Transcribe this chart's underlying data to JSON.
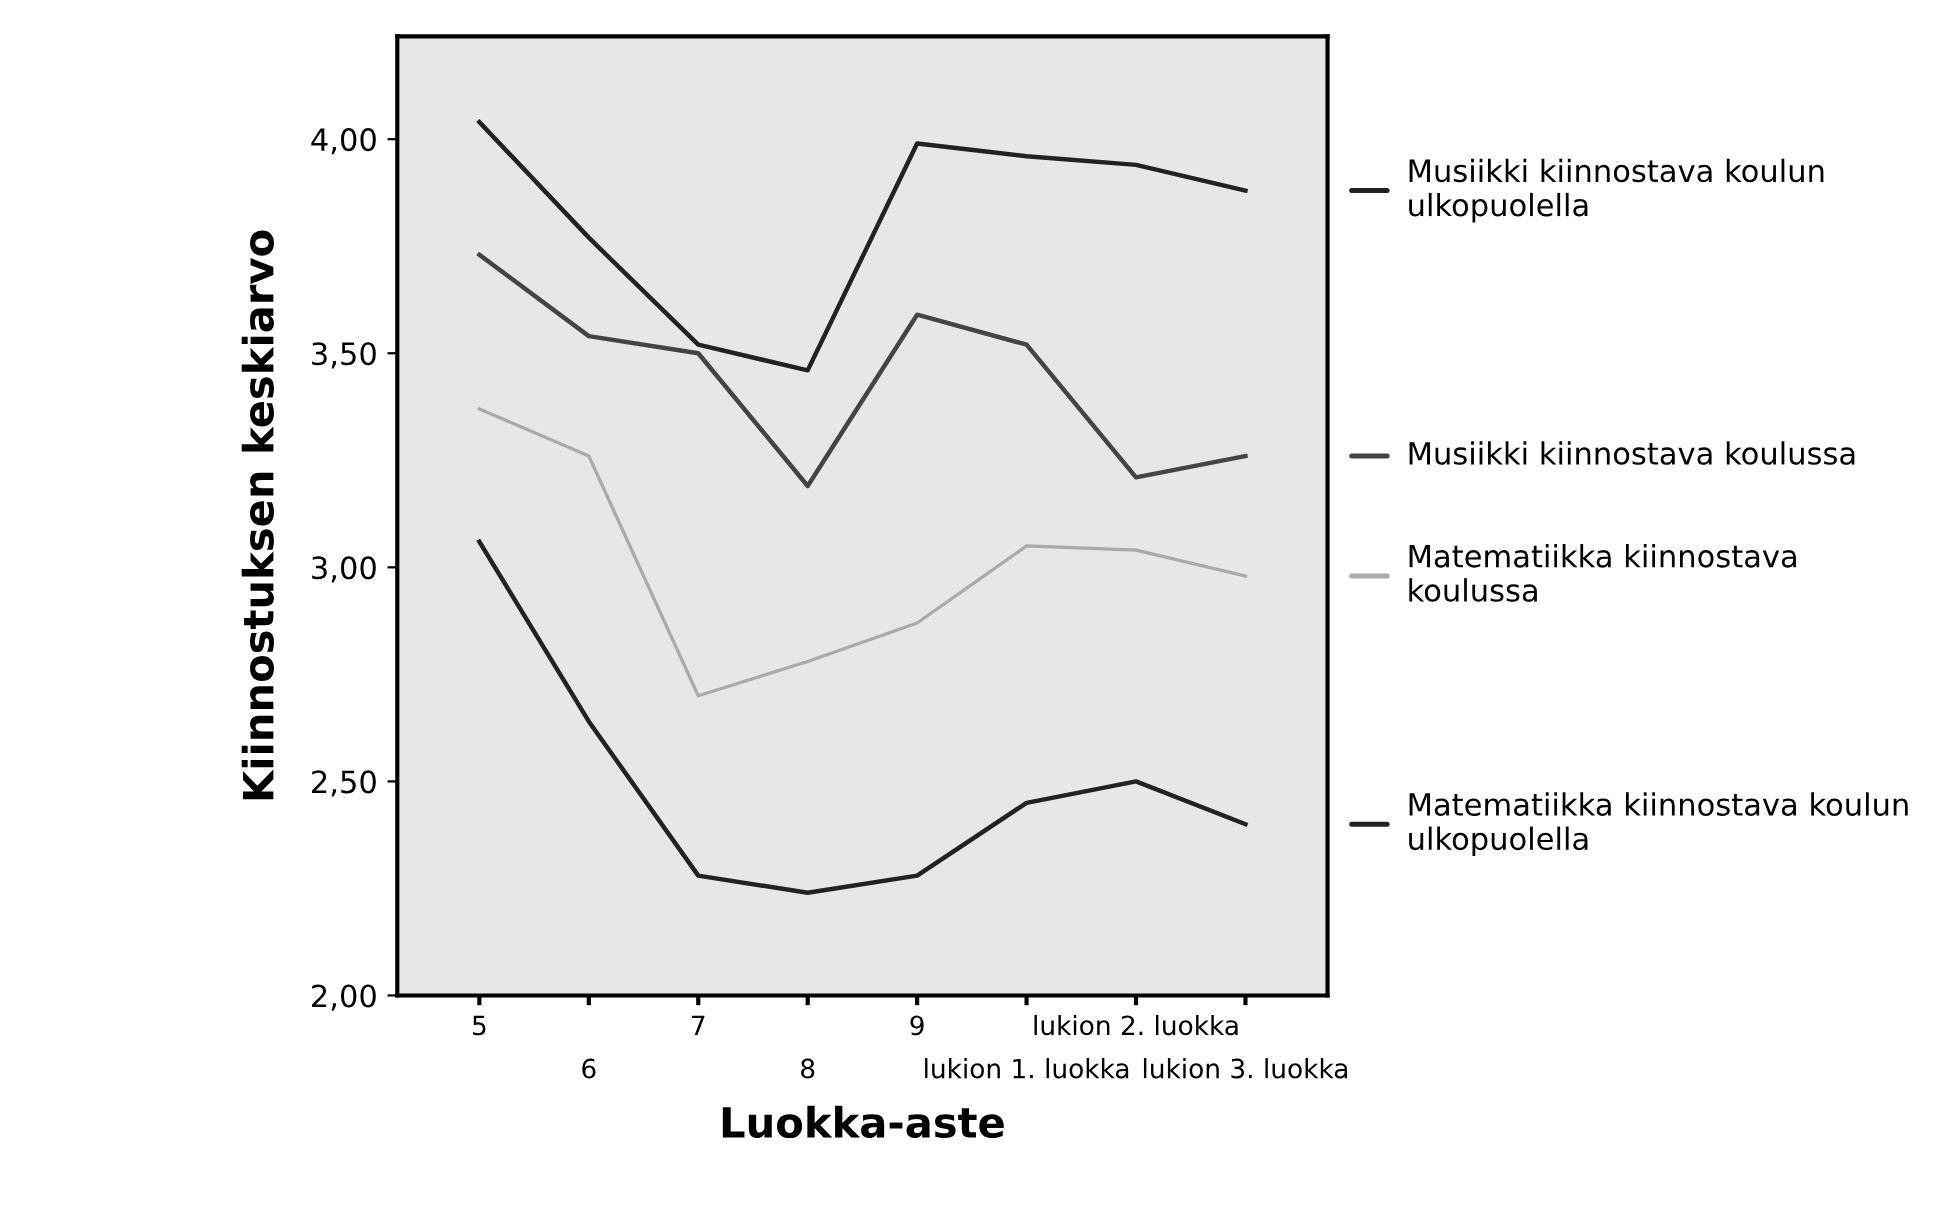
{
  "chart_data": {
    "type": "line",
    "xlabel": "Luokka-aste",
    "ylabel": "Kiinnostuksen keskiarvo",
    "categories": [
      "5",
      "6",
      "7",
      "8",
      "9",
      "lukion 1. luokka",
      "lukion 2. luokka",
      "lukion 3. luokka"
    ],
    "ylim": [
      2.0,
      4.24
    ],
    "yticks": [
      {
        "value": 2.0,
        "label": "2,00"
      },
      {
        "value": 2.5,
        "label": "2,50"
      },
      {
        "value": 3.0,
        "label": "3,00"
      },
      {
        "value": 3.5,
        "label": "3,50"
      },
      {
        "value": 4.0,
        "label": "4,00"
      }
    ],
    "legend": "right",
    "grid": false,
    "marker": "none",
    "line_style": "solid",
    "series": [
      {
        "name": "Musiikki kiinnostava koulun ulkopuolella",
        "color": "#222222",
        "values": [
          4.04,
          3.77,
          3.52,
          3.46,
          3.99,
          3.96,
          3.94,
          3.88
        ]
      },
      {
        "name": "Musiikki kiinnostava koulussa",
        "color": "#444444",
        "values": [
          3.73,
          3.54,
          3.5,
          3.19,
          3.59,
          3.52,
          3.21,
          3.26
        ]
      },
      {
        "name": "Matematiikka kiinnostava koulussa",
        "color": "#aaaaaa",
        "values": [
          3.37,
          3.26,
          2.7,
          2.78,
          2.87,
          3.05,
          3.04,
          2.98
        ]
      },
      {
        "name": "Matematiikka kiinnostava koulun ulkopuolella",
        "color": "#222222",
        "values": [
          3.06,
          2.64,
          2.28,
          2.24,
          2.28,
          2.45,
          2.5,
          2.4
        ]
      }
    ]
  }
}
